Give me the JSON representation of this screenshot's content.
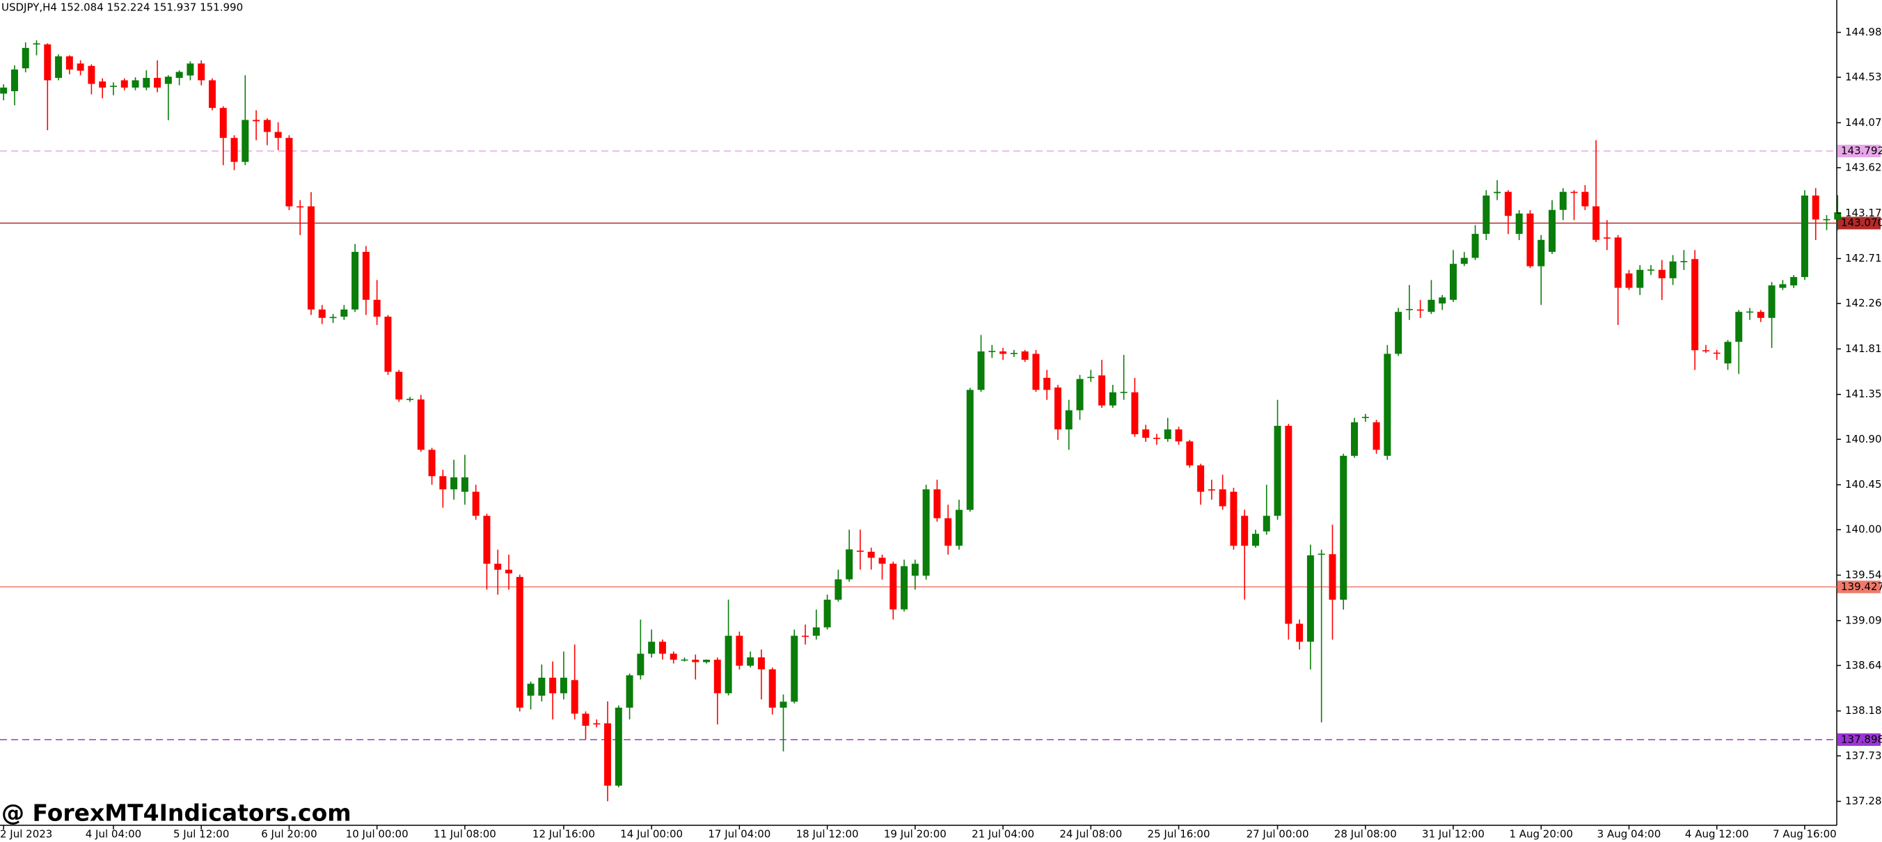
{
  "chart_data": {
    "type": "candlestick",
    "title": "USDJPY,H4  152.084 152.224 151.937 151.990",
    "watermark": "@ ForexMT4Indicators.com",
    "up_color": "#0a7d0a",
    "down_color": "#ff0000",
    "ylim": [
      137.04,
      145.304
    ],
    "yticks": [
      {
        "value": 144.98,
        "label": "144.980"
      },
      {
        "value": 144.53,
        "label": "144.530"
      },
      {
        "value": 144.075,
        "label": "144.075"
      },
      {
        "value": 143.625,
        "label": "143.625"
      },
      {
        "value": 143.17,
        "label": "143.170"
      },
      {
        "value": 142.715,
        "label": "142.715"
      },
      {
        "value": 142.265,
        "label": "142.265"
      },
      {
        "value": 141.81,
        "label": "141.810"
      },
      {
        "value": 141.355,
        "label": "141.355"
      },
      {
        "value": 140.905,
        "label": "140.905"
      },
      {
        "value": 140.45,
        "label": "140.450"
      },
      {
        "value": 140.0,
        "label": "140.000"
      },
      {
        "value": 139.545,
        "label": "139.545"
      },
      {
        "value": 139.09,
        "label": "139.090"
      },
      {
        "value": 138.64,
        "label": "138.640"
      },
      {
        "value": 138.185,
        "label": "138.185"
      },
      {
        "value": 137.735,
        "label": "137.735"
      },
      {
        "value": 137.28,
        "label": "137.280"
      }
    ],
    "levels": [
      {
        "value": 143.792,
        "label": "143.792",
        "color": "#e9a6ea",
        "dashed": true
      },
      {
        "value": 143.07,
        "label": "143.070",
        "color": "#b52a2a",
        "dashed": false
      },
      {
        "value": 139.427,
        "label": "139.427",
        "color": "#f07a6a",
        "dashed": false
      },
      {
        "value": 137.898,
        "label": "137.898",
        "color": "#9b36d6",
        "dashed": true
      }
    ],
    "categories": [
      "2 Jul 2023",
      null,
      null,
      null,
      null,
      null,
      null,
      null,
      null,
      null,
      "4 Jul 04:00",
      null,
      null,
      null,
      null,
      null,
      null,
      null,
      "5 Jul 12:00",
      null,
      null,
      null,
      null,
      null,
      null,
      null,
      "6 Jul 20:00",
      null,
      null,
      null,
      null,
      null,
      null,
      null,
      "10 Jul 00:00",
      null,
      null,
      null,
      null,
      null,
      null,
      null,
      "11 Jul 08:00",
      null,
      null,
      null,
      null,
      null,
      null,
      null,
      null,
      "12 Jul 16:00",
      null,
      null,
      null,
      null,
      null,
      null,
      null,
      "14 Jul 00:00",
      null,
      null,
      null,
      null,
      null,
      null,
      null,
      "17 Jul 04:00",
      null,
      null,
      null,
      null,
      null,
      null,
      null,
      "18 Jul 12:00",
      null,
      null,
      null,
      null,
      null,
      null,
      null,
      "19 Jul 20:00",
      null,
      null,
      null,
      null,
      null,
      null,
      null,
      "21 Jul 04:00",
      null,
      null,
      null,
      null,
      null,
      null,
      null,
      "24 Jul 08:00",
      null,
      null,
      null,
      null,
      null,
      null,
      null,
      "25 Jul 16:00",
      null,
      null,
      null,
      null,
      null,
      null,
      null,
      null,
      "27 Jul 00:00",
      null,
      null,
      null,
      null,
      null,
      null,
      null,
      "28 Jul 08:00",
      null,
      null,
      null,
      null,
      null,
      null,
      null,
      "31 Jul 12:00",
      null,
      null,
      null,
      null,
      null,
      null,
      null,
      "1 Aug 20:00",
      null,
      null,
      null,
      null,
      null,
      null,
      null,
      "3 Aug 04:00",
      null,
      null,
      null,
      null,
      null,
      null,
      null,
      "4 Aug 12:00",
      null,
      null,
      null,
      null,
      null,
      null,
      null,
      "7 Aug 16:00",
      null,
      null,
      null
    ],
    "ohlc": [
      [
        144.367,
        144.46,
        144.3,
        144.427
      ],
      [
        144.391,
        144.65,
        144.25,
        144.608
      ],
      [
        144.62,
        144.88,
        144.58,
        144.824
      ],
      [
        144.86,
        144.9,
        144.75,
        144.87
      ],
      [
        144.86,
        144.87,
        144.0,
        144.5
      ],
      [
        144.524,
        144.76,
        144.5,
        144.74
      ],
      [
        144.74,
        144.75,
        144.56,
        144.608
      ],
      [
        144.668,
        144.7,
        144.55,
        144.596
      ],
      [
        144.644,
        144.66,
        144.36,
        144.464
      ],
      [
        144.488,
        144.52,
        144.32,
        144.427
      ],
      [
        144.44,
        144.48,
        144.35,
        144.445
      ],
      [
        144.5,
        144.52,
        144.4,
        144.427
      ],
      [
        144.427,
        144.53,
        144.4,
        144.5
      ],
      [
        144.427,
        144.6,
        144.4,
        144.524
      ],
      [
        144.524,
        144.7,
        144.38,
        144.427
      ],
      [
        144.464,
        144.55,
        144.1,
        144.536
      ],
      [
        144.524,
        144.6,
        144.45,
        144.584
      ],
      [
        144.548,
        144.69,
        144.5,
        144.668
      ],
      [
        144.668,
        144.7,
        144.45,
        144.5
      ],
      [
        144.5,
        144.52,
        144.2,
        144.223
      ],
      [
        144.223,
        144.24,
        143.65,
        143.923
      ],
      [
        143.923,
        143.95,
        143.6,
        143.683
      ],
      [
        143.683,
        144.55,
        143.65,
        144.103
      ],
      [
        144.103,
        144.2,
        143.9,
        144.09
      ],
      [
        144.103,
        144.12,
        143.85,
        143.983
      ],
      [
        143.983,
        144.08,
        143.8,
        143.923
      ],
      [
        143.923,
        143.95,
        143.2,
        143.238
      ],
      [
        143.238,
        143.3,
        142.95,
        143.23
      ],
      [
        143.238,
        143.38,
        142.15,
        142.205
      ],
      [
        142.205,
        142.25,
        142.06,
        142.121
      ],
      [
        142.121,
        142.16,
        142.07,
        142.13
      ],
      [
        142.133,
        142.25,
        142.1,
        142.205
      ],
      [
        142.205,
        142.86,
        142.18,
        142.782
      ],
      [
        142.782,
        142.84,
        142.15,
        142.302
      ],
      [
        142.302,
        142.5,
        142.05,
        142.133
      ],
      [
        142.133,
        142.15,
        141.55,
        141.581
      ],
      [
        141.581,
        141.6,
        141.28,
        141.304
      ],
      [
        141.304,
        141.33,
        141.28,
        141.31
      ],
      [
        141.304,
        141.35,
        140.78,
        140.8
      ],
      [
        140.8,
        140.82,
        140.45,
        140.536
      ],
      [
        140.536,
        140.6,
        140.22,
        140.404
      ],
      [
        140.404,
        140.7,
        140.3,
        140.524
      ],
      [
        140.38,
        140.75,
        140.25,
        140.524
      ],
      [
        140.38,
        140.45,
        140.1,
        140.139
      ],
      [
        140.139,
        140.16,
        139.4,
        139.659
      ],
      [
        139.659,
        139.8,
        139.35,
        139.599
      ],
      [
        139.599,
        139.75,
        139.4,
        139.563
      ],
      [
        139.527,
        139.55,
        138.18,
        138.218
      ],
      [
        138.338,
        138.48,
        138.2,
        138.458
      ],
      [
        138.338,
        138.65,
        138.28,
        138.518
      ],
      [
        138.518,
        138.68,
        138.1,
        138.362
      ],
      [
        138.362,
        138.78,
        138.3,
        138.518
      ],
      [
        138.494,
        138.85,
        138.1,
        138.158
      ],
      [
        138.158,
        138.18,
        137.9,
        138.037
      ],
      [
        138.061,
        138.1,
        138.02,
        138.05
      ],
      [
        138.061,
        138.28,
        137.28,
        137.437
      ],
      [
        137.437,
        138.24,
        137.42,
        138.218
      ],
      [
        138.218,
        138.56,
        138.1,
        138.542
      ],
      [
        138.542,
        139.1,
        138.5,
        138.758
      ],
      [
        138.758,
        139.0,
        138.72,
        138.878
      ],
      [
        138.878,
        138.9,
        138.7,
        138.758
      ],
      [
        138.758,
        138.78,
        138.66,
        138.698
      ],
      [
        138.698,
        138.72,
        138.68,
        138.7
      ],
      [
        138.698,
        138.75,
        138.5,
        138.674
      ],
      [
        138.674,
        138.7,
        138.66,
        138.698
      ],
      [
        138.698,
        138.72,
        138.05,
        138.362
      ],
      [
        138.362,
        139.3,
        138.34,
        138.938
      ],
      [
        138.938,
        138.98,
        138.6,
        138.638
      ],
      [
        138.638,
        138.78,
        138.62,
        138.722
      ],
      [
        138.722,
        138.8,
        138.3,
        138.602
      ],
      [
        138.602,
        138.62,
        138.15,
        138.218
      ],
      [
        138.218,
        138.35,
        137.78,
        138.278
      ],
      [
        138.278,
        139.0,
        138.26,
        138.938
      ],
      [
        138.938,
        139.05,
        138.85,
        138.93
      ],
      [
        138.938,
        139.2,
        138.9,
        139.022
      ],
      [
        139.022,
        139.35,
        139.0,
        139.299
      ],
      [
        139.299,
        139.6,
        139.28,
        139.503
      ],
      [
        139.503,
        140.0,
        139.48,
        139.803
      ],
      [
        139.79,
        140.0,
        139.6,
        139.779
      ],
      [
        139.779,
        139.82,
        139.6,
        139.719
      ],
      [
        139.719,
        139.75,
        139.5,
        139.659
      ],
      [
        139.659,
        139.68,
        139.1,
        139.202
      ],
      [
        139.202,
        139.7,
        139.18,
        139.635
      ],
      [
        139.539,
        139.7,
        139.4,
        139.659
      ],
      [
        139.539,
        140.45,
        139.5,
        140.404
      ],
      [
        140.404,
        140.5,
        140.08,
        140.115
      ],
      [
        140.115,
        140.25,
        139.75,
        139.839
      ],
      [
        139.839,
        140.3,
        139.8,
        140.199
      ],
      [
        140.199,
        141.42,
        140.18,
        141.4
      ],
      [
        141.4,
        141.95,
        141.38,
        141.785
      ],
      [
        141.785,
        141.85,
        141.72,
        141.79
      ],
      [
        141.785,
        141.82,
        141.7,
        141.761
      ],
      [
        141.761,
        141.8,
        141.73,
        141.77
      ],
      [
        141.785,
        141.8,
        141.68,
        141.701
      ],
      [
        141.761,
        141.8,
        141.38,
        141.4
      ],
      [
        141.521,
        141.6,
        141.3,
        141.4
      ],
      [
        141.424,
        141.45,
        140.9,
        141.004
      ],
      [
        141.004,
        141.3,
        140.8,
        141.196
      ],
      [
        141.196,
        141.55,
        141.1,
        141.509
      ],
      [
        141.521,
        141.6,
        141.48,
        141.53
      ],
      [
        141.545,
        141.7,
        141.22,
        141.244
      ],
      [
        141.244,
        141.45,
        141.22,
        141.376
      ],
      [
        141.376,
        141.75,
        141.3,
        141.38
      ],
      [
        141.376,
        141.52,
        140.93,
        140.956
      ],
      [
        141.004,
        141.05,
        140.88,
        140.92
      ],
      [
        140.92,
        140.96,
        140.85,
        140.915
      ],
      [
        140.908,
        141.12,
        140.88,
        141.004
      ],
      [
        141.004,
        141.03,
        140.85,
        140.884
      ],
      [
        140.884,
        140.9,
        140.62,
        140.644
      ],
      [
        140.644,
        140.66,
        140.25,
        140.38
      ],
      [
        140.404,
        140.5,
        140.3,
        140.4
      ],
      [
        140.404,
        140.55,
        140.2,
        140.235
      ],
      [
        140.38,
        140.42,
        139.8,
        139.839
      ],
      [
        140.139,
        140.2,
        139.3,
        139.839
      ],
      [
        139.839,
        140.0,
        139.82,
        139.959
      ],
      [
        139.983,
        140.45,
        139.95,
        140.139
      ],
      [
        140.139,
        141.3,
        140.1,
        141.04
      ],
      [
        141.04,
        141.06,
        138.9,
        139.058
      ],
      [
        139.058,
        139.1,
        138.8,
        138.878
      ],
      [
        138.878,
        139.85,
        138.6,
        139.743
      ],
      [
        139.755,
        139.8,
        138.07,
        139.76
      ],
      [
        139.755,
        140.05,
        138.9,
        139.299
      ],
      [
        139.299,
        140.76,
        139.2,
        140.74
      ],
      [
        140.74,
        141.12,
        140.72,
        141.076
      ],
      [
        141.124,
        141.16,
        141.08,
        141.13
      ],
      [
        141.076,
        141.1,
        140.76,
        140.8
      ],
      [
        140.74,
        141.85,
        140.7,
        141.761
      ],
      [
        141.761,
        142.22,
        141.74,
        142.181
      ],
      [
        142.205,
        142.45,
        142.1,
        142.21
      ],
      [
        142.205,
        142.3,
        142.12,
        142.2
      ],
      [
        142.181,
        142.5,
        142.16,
        142.302
      ],
      [
        142.265,
        142.35,
        142.2,
        142.326
      ],
      [
        142.302,
        142.8,
        142.28,
        142.662
      ],
      [
        142.662,
        142.78,
        142.64,
        142.722
      ],
      [
        142.722,
        143.05,
        142.7,
        142.962
      ],
      [
        142.962,
        143.4,
        142.9,
        143.346
      ],
      [
        143.37,
        143.5,
        143.3,
        143.383
      ],
      [
        143.383,
        143.4,
        142.96,
        143.142
      ],
      [
        142.962,
        143.2,
        142.9,
        143.166
      ],
      [
        143.166,
        143.2,
        142.62,
        142.638
      ],
      [
        142.638,
        142.95,
        142.25,
        142.902
      ],
      [
        142.782,
        143.3,
        142.76,
        143.202
      ],
      [
        143.202,
        143.42,
        143.1,
        143.383
      ],
      [
        143.383,
        143.4,
        143.1,
        143.38
      ],
      [
        143.383,
        143.45,
        143.2,
        143.238
      ],
      [
        143.238,
        143.9,
        142.88,
        142.902
      ],
      [
        142.926,
        143.1,
        142.8,
        142.92
      ],
      [
        142.926,
        142.95,
        142.05,
        142.422
      ],
      [
        142.566,
        142.6,
        142.4,
        142.422
      ],
      [
        142.422,
        142.65,
        142.35,
        142.602
      ],
      [
        142.602,
        142.65,
        142.55,
        142.605
      ],
      [
        142.602,
        142.7,
        142.3,
        142.518
      ],
      [
        142.518,
        142.75,
        142.45,
        142.686
      ],
      [
        142.686,
        142.8,
        142.6,
        142.69
      ],
      [
        142.71,
        142.8,
        141.6,
        141.797
      ],
      [
        141.797,
        141.85,
        141.77,
        141.79
      ],
      [
        141.773,
        141.8,
        141.7,
        141.77
      ],
      [
        141.665,
        141.9,
        141.6,
        141.881
      ],
      [
        141.881,
        142.2,
        141.56,
        142.181
      ],
      [
        142.181,
        142.22,
        142.1,
        142.185
      ],
      [
        142.181,
        142.2,
        142.08,
        142.121
      ],
      [
        142.121,
        142.48,
        141.82,
        142.446
      ],
      [
        142.422,
        142.5,
        142.4,
        142.458
      ],
      [
        142.446,
        142.55,
        142.42,
        142.53
      ],
      [
        142.53,
        143.4,
        142.5,
        143.346
      ],
      [
        143.346,
        143.42,
        142.9,
        143.106
      ],
      [
        143.106,
        143.15,
        143.0,
        143.11
      ],
      [
        143.106,
        143.35,
        143.0,
        143.178
      ]
    ]
  }
}
